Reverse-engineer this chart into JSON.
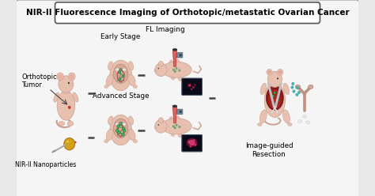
{
  "title": "NIR-II Fluorescence Imaging of Orthotopic/metastatic Ovarian Cancer",
  "title_fontsize": 7.5,
  "bg_color": "#e8e8e8",
  "inner_bg": "#f5f5f5",
  "labels": {
    "orthotopic_tumor": "Orthotopic\nTumor",
    "nir_nanoparticles": "NIR-II Nanoparticles",
    "early_stage": "Early Stage",
    "advanced_stage": "Advanced Stage",
    "fl_imaging": "FL Imaging",
    "image_guided": "Image-guided\nResection"
  },
  "label_fontsize": 6.0,
  "fig_width": 4.74,
  "fig_height": 2.48,
  "dpi": 100,
  "mouse_skin": "#ddb8a8",
  "mouse_skin_dark": "#c9a090",
  "mouse_pink": "#e8c0b0",
  "organ_inner": "#e0a0a0",
  "organ_edge": "#b07070",
  "tumor_green": "#2a7a3a",
  "tumor_green_light": "#4aaa5a",
  "nano_gold": "#d4a017",
  "nano_gold_dark": "#a07010",
  "probe_pink": "#e06060",
  "probe_dark": "#aa3333",
  "screen_bg": "#0a0a18",
  "screen_spot1": "#cc2255",
  "screen_spot2": "#ff4488",
  "resection_red": "#8b1a1a",
  "resection_red2": "#aa2222",
  "tool_silver": "#c0c0c0",
  "teal_nano": "#44bbbb",
  "dash_color": "#444444",
  "arrow_color": "#444444",
  "uterus_color": "#c0a090",
  "white_spot": "#e8e8e8"
}
